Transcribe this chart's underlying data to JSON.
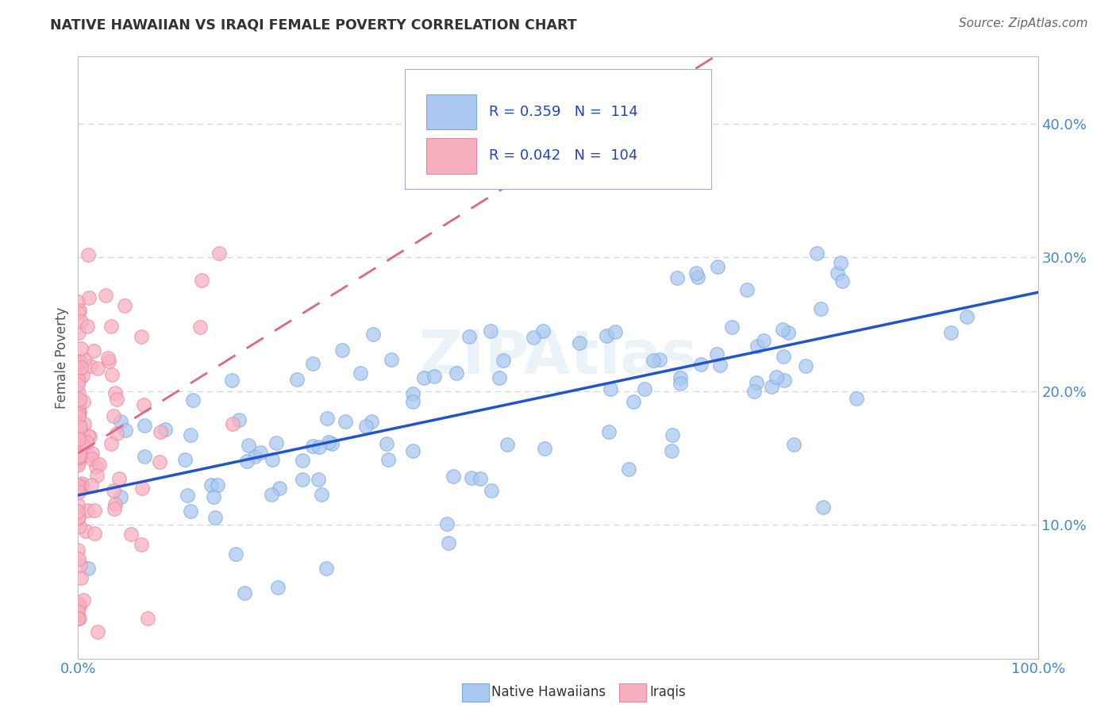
{
  "title": "NATIVE HAWAIIAN VS IRAQI FEMALE POVERTY CORRELATION CHART",
  "source_text": "Source: ZipAtlas.com",
  "ylabel": "Female Poverty",
  "xlim": [
    0,
    1.0
  ],
  "ylim": [
    0,
    0.45
  ],
  "xtick_positions": [
    0.0,
    0.1,
    0.2,
    0.3,
    0.4,
    0.5,
    0.6,
    0.7,
    0.8,
    0.9,
    1.0
  ],
  "xtick_labels": [
    "0.0%",
    "",
    "",
    "",
    "",
    "",
    "",
    "",
    "",
    "",
    "100.0%"
  ],
  "ytick_positions": [
    0.1,
    0.2,
    0.3,
    0.4
  ],
  "ytick_labels": [
    "10.0%",
    "20.0%",
    "30.0%",
    "40.0%"
  ],
  "blue_face_color": "#aac8f0",
  "blue_edge_color": "#7aaae0",
  "pink_face_color": "#f8b0c0",
  "pink_edge_color": "#e888a0",
  "blue_line_color": "#2255cc",
  "pink_line_color": "#dd6688",
  "title_color": "#333333",
  "tick_label_color": "#4488cc",
  "grid_color": "#c8d8e8",
  "legend_R1": "R = 0.359",
  "legend_N1": "N =  114",
  "legend_R2": "R = 0.042",
  "legend_N2": "N =  104",
  "legend_label1": "Native Hawaiians",
  "legend_label2": "Iraqis",
  "watermark": "ZIPAtlas",
  "blue_seed": 12345,
  "pink_seed": 67890
}
